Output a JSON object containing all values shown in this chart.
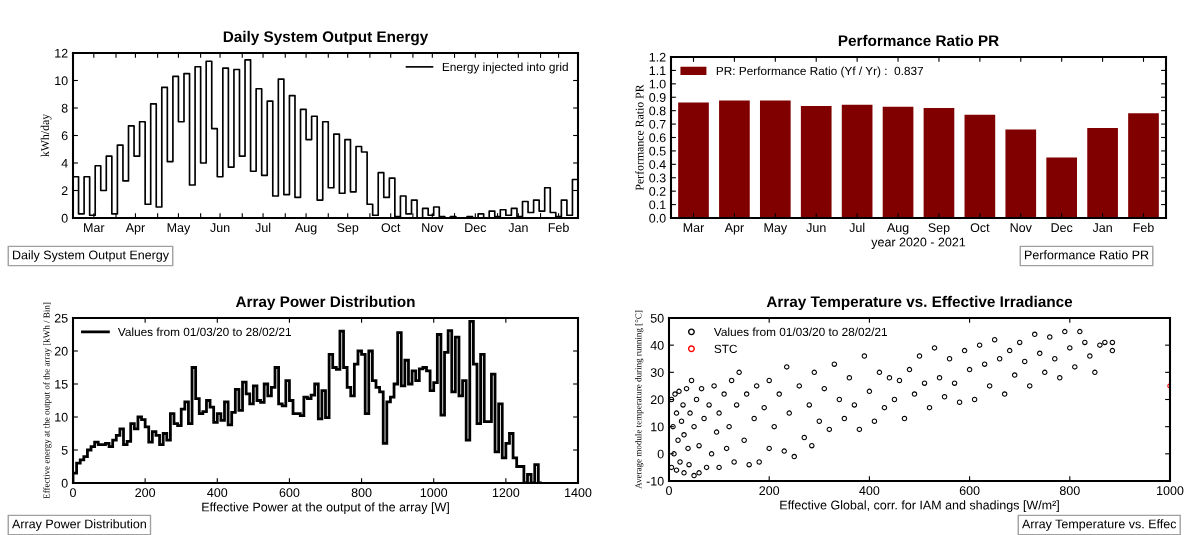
{
  "chart_data": [
    {
      "type": "step",
      "title": "Daily System Output Energy",
      "ylabel": "kWh/day",
      "legend": "top right",
      "xlim": [
        "2020-03-01",
        "2021-02-28"
      ],
      "ylim": [
        0,
        12
      ],
      "yticks": [
        0,
        2,
        4,
        6,
        8,
        10,
        12
      ],
      "xticks": [
        {
          "value": "2020-03-16",
          "label": "Mar"
        },
        {
          "value": "2020-04-01",
          "label": null
        },
        {
          "value": "2020-04-15",
          "label": "Apr"
        },
        {
          "value": "2020-05-01",
          "label": null
        },
        {
          "value": "2020-05-16",
          "label": "May"
        },
        {
          "value": "2020-06-01",
          "label": null
        },
        {
          "value": "2020-06-15",
          "label": "Jun"
        },
        {
          "value": "2020-07-01",
          "label": null
        },
        {
          "value": "2020-07-16",
          "label": "Jul"
        },
        {
          "value": "2020-08-01",
          "label": null
        },
        {
          "value": "2020-08-16",
          "label": "Aug"
        },
        {
          "value": "2020-09-01",
          "label": null
        },
        {
          "value": "2020-09-15",
          "label": "Sep"
        },
        {
          "value": "2020-10-01",
          "label": null
        },
        {
          "value": "2020-10-16",
          "label": "Oct"
        },
        {
          "value": "2020-11-01",
          "label": null
        },
        {
          "value": "2020-11-15",
          "label": "Nov"
        },
        {
          "value": "2020-12-01",
          "label": null
        },
        {
          "value": "2020-12-16",
          "label": "Dec"
        },
        {
          "value": "2021-01-01",
          "label": null
        },
        {
          "value": "2021-01-16",
          "label": "Jan"
        },
        {
          "value": "2021-02-01",
          "label": null
        },
        {
          "value": "2021-02-14",
          "label": "Feb"
        }
      ],
      "annotations": [
        "Daily System Output Energy"
      ],
      "series": [
        {
          "name": "Energy injected into grid",
          "color": "#000000",
          "x": [
            "2020-03-01",
            "2020-03-05",
            "2020-03-09",
            "2020-03-13",
            "2020-03-17",
            "2020-03-21",
            "2020-03-25",
            "2020-03-29",
            "2020-04-02",
            "2020-04-06",
            "2020-04-10",
            "2020-04-14",
            "2020-04-18",
            "2020-04-22",
            "2020-04-26",
            "2020-04-30",
            "2020-05-04",
            "2020-05-08",
            "2020-05-12",
            "2020-05-16",
            "2020-05-20",
            "2020-05-24",
            "2020-05-28",
            "2020-06-01",
            "2020-06-05",
            "2020-06-09",
            "2020-06-13",
            "2020-06-17",
            "2020-06-21",
            "2020-06-25",
            "2020-06-29",
            "2020-07-03",
            "2020-07-07",
            "2020-07-11",
            "2020-07-15",
            "2020-07-19",
            "2020-07-23",
            "2020-07-27",
            "2020-07-31",
            "2020-08-04",
            "2020-08-08",
            "2020-08-12",
            "2020-08-16",
            "2020-08-20",
            "2020-08-24",
            "2020-08-28",
            "2020-09-01",
            "2020-09-05",
            "2020-09-09",
            "2020-09-13",
            "2020-09-17",
            "2020-09-21",
            "2020-09-25",
            "2020-09-29",
            "2020-10-03",
            "2020-10-07",
            "2020-10-11",
            "2020-10-15",
            "2020-10-19",
            "2020-10-23",
            "2020-10-27",
            "2020-10-31",
            "2020-11-04",
            "2020-11-08",
            "2020-11-12",
            "2020-11-16",
            "2020-11-20",
            "2020-11-24",
            "2020-11-28",
            "2020-12-02",
            "2020-12-06",
            "2020-12-10",
            "2020-12-14",
            "2020-12-18",
            "2020-12-22",
            "2020-12-26",
            "2020-12-30",
            "2021-01-03",
            "2021-01-07",
            "2021-01-11",
            "2021-01-15",
            "2021-01-19",
            "2021-01-23",
            "2021-01-27",
            "2021-01-31",
            "2021-02-04",
            "2021-02-08",
            "2021-02-12",
            "2021-02-16",
            "2021-02-20",
            "2021-02-24",
            "2021-02-28"
          ],
          "values": [
            3.0,
            0.3,
            3.0,
            0.2,
            3.8,
            2.0,
            4.5,
            0.3,
            5.3,
            2.7,
            6.7,
            4.5,
            7.0,
            1.0,
            8.3,
            0.8,
            9.5,
            4.1,
            10.3,
            7.0,
            10.5,
            2.4,
            11.0,
            4.0,
            11.4,
            6.5,
            3.0,
            10.9,
            3.7,
            10.8,
            4.5,
            11.5,
            3.4,
            9.4,
            3.1,
            8.5,
            1.6,
            10.1,
            1.7,
            8.9,
            1.5,
            7.9,
            5.7,
            7.4,
            1.3,
            7.0,
            2.2,
            6.1,
            1.8,
            5.7,
            1.9,
            5.2,
            4.8,
            1.0,
            0.2,
            3.3,
            1.5,
            2.9,
            0.1,
            1.6,
            0.3,
            1.3,
            0.0,
            0.7,
            0.2,
            0.8,
            0.1,
            0.0,
            0.1,
            0.0,
            0.0,
            0.1,
            0.0,
            0.3,
            0.0,
            0.5,
            0.1,
            0.6,
            0.2,
            0.7,
            0.1,
            1.2,
            0.4,
            1.3,
            0.5,
            2.2,
            0.4,
            0.1,
            1.3,
            0.2,
            2.8,
            3.0
          ]
        }
      ]
    },
    {
      "type": "bar",
      "title": "Performance Ratio PR",
      "ylabel": "Performance Ratio PR",
      "xlabel": "year 2020 - 2021",
      "legend": "top left",
      "categories": [
        "Mar",
        "Apr",
        "May",
        "Jun",
        "Jul",
        "Aug",
        "Sep",
        "Oct",
        "Nov",
        "Dec",
        "Jan",
        "Feb"
      ],
      "ylim": [
        0,
        1.2
      ],
      "yticks": [
        {
          "value": 0,
          "label": "0.0"
        },
        0.1,
        0.2,
        0.3,
        0.4,
        0.5,
        0.6,
        0.7,
        0.8,
        0.9,
        {
          "value": 1,
          "label": "1.0"
        },
        1.1,
        1.2
      ],
      "annotations": [
        "Performance Ratio PR"
      ],
      "series": [
        {
          "name": "PR: Performance Ratio (Yf / Yr) :  0.837",
          "color": "#800000",
          "values": [
            0.86,
            0.875,
            0.875,
            0.835,
            0.845,
            0.83,
            0.82,
            0.77,
            0.66,
            0.45,
            0.67,
            0.78
          ]
        }
      ]
    },
    {
      "type": "histogram",
      "title": "Array Power Distribution",
      "ylabel": "Effective energy at the output of the array [kWh / Bin]",
      "xlabel": "Effective Power at the output of the array [W]",
      "legend": "top left",
      "xlim": [
        0,
        1400
      ],
      "xticks": [
        0,
        200,
        400,
        600,
        800,
        1000,
        1200,
        1400
      ],
      "ylim": [
        0,
        25
      ],
      "yticks": [
        0,
        5,
        10,
        15,
        20,
        25
      ],
      "annotations": [
        "Array Power Distribution"
      ],
      "bins": [
        0,
        10,
        20,
        30,
        40,
        50,
        60,
        70,
        80,
        90,
        100,
        110,
        120,
        130,
        140,
        150,
        160,
        170,
        180,
        190,
        200,
        210,
        220,
        230,
        240,
        250,
        260,
        270,
        280,
        290,
        300,
        310,
        320,
        330,
        340,
        350,
        360,
        370,
        380,
        390,
        400,
        410,
        420,
        430,
        440,
        450,
        460,
        470,
        480,
        490,
        500,
        510,
        520,
        530,
        540,
        550,
        560,
        570,
        580,
        590,
        600,
        610,
        620,
        630,
        640,
        650,
        660,
        670,
        680,
        690,
        700,
        710,
        720,
        730,
        740,
        750,
        760,
        770,
        780,
        790,
        800,
        810,
        820,
        830,
        840,
        850,
        860,
        870,
        880,
        890,
        900,
        910,
        920,
        930,
        940,
        950,
        960,
        970,
        980,
        990,
        1000,
        1010,
        1020,
        1030,
        1040,
        1050,
        1060,
        1070,
        1080,
        1090,
        1100,
        1110,
        1120,
        1130,
        1140,
        1150,
        1160,
        1170,
        1180,
        1190,
        1200,
        1210,
        1220,
        1230,
        1240,
        1250,
        1260,
        1270,
        1280,
        1290,
        1300
      ],
      "series": [
        {
          "name": "Values from 01/03/20 to 28/02/21",
          "color": "#000000",
          "values": [
            1.5,
            3,
            3.5,
            4,
            5,
            5.5,
            6.2,
            5.8,
            5.8,
            6,
            5.5,
            6.5,
            7.2,
            8.2,
            5.8,
            6.3,
            9,
            8.2,
            10,
            9.6,
            8.5,
            6.2,
            7.8,
            7.2,
            5.8,
            7.5,
            6.5,
            10.5,
            9,
            8.7,
            11.2,
            12.3,
            9,
            17.5,
            12.8,
            10.5,
            10.8,
            12.5,
            11.5,
            9.2,
            10.5,
            9.5,
            12.3,
            8.8,
            10.7,
            14.2,
            11,
            15.3,
            13.5,
            12,
            14.7,
            12.5,
            12.2,
            15,
            13.2,
            14.5,
            17.5,
            12,
            11.7,
            15.5,
            12.5,
            10.5,
            10.5,
            10.2,
            13,
            12.8,
            13.3,
            15,
            9.7,
            14,
            9.9,
            19.5,
            17.5,
            17.2,
            23,
            17.5,
            14.5,
            13.2,
            18,
            20,
            19.5,
            10.5,
            20,
            15.5,
            14.5,
            13.8,
            6,
            12.3,
            13,
            15,
            22.8,
            14.7,
            18.6,
            15,
            17,
            15.5,
            17.3,
            17.5,
            17,
            14,
            15.2,
            22.5,
            10.3,
            19.8,
            23.1,
            13.8,
            22.1,
            13.2,
            15.5,
            6.5,
            24.5,
            18,
            9,
            19.5,
            9.3,
            9.3,
            16.5,
            4.7,
            12,
            3.8,
            6,
            7.5,
            3.8,
            2.5,
            2.5,
            0,
            1.3,
            0,
            2.8,
            0
          ]
        }
      ]
    },
    {
      "type": "scatter",
      "title": "Array Temperature vs. Effective Irradiance",
      "ylabel": "Average module temperature during running [°C]",
      "xlabel": "Effective Global, corr. for IAM and shadings [W/m²]",
      "legend": "top left",
      "marker": "circle",
      "xlim": [
        0,
        1000
      ],
      "xticks": [
        0,
        200,
        400,
        600,
        800,
        1000
      ],
      "ylim": [
        -10,
        50
      ],
      "yticks": [
        -10,
        0,
        10,
        20,
        30,
        40,
        50
      ],
      "annotations": [
        "Array Temperature vs. Effec"
      ],
      "series": [
        {
          "name": "Values from 01/03/20 to 28/02/21",
          "color": "#000000",
          "x": [
            5,
            5,
            8,
            10,
            12,
            15,
            15,
            18,
            20,
            22,
            25,
            28,
            30,
            30,
            35,
            38,
            40,
            42,
            45,
            50,
            50,
            55,
            60,
            60,
            65,
            70,
            75,
            80,
            85,
            90,
            95,
            100,
            100,
            110,
            115,
            120,
            125,
            130,
            135,
            140,
            150,
            155,
            160,
            170,
            175,
            180,
            190,
            200,
            200,
            210,
            220,
            230,
            235,
            240,
            250,
            260,
            270,
            280,
            285,
            290,
            300,
            310,
            320,
            330,
            340,
            350,
            360,
            370,
            380,
            390,
            400,
            410,
            420,
            430,
            440,
            450,
            460,
            470,
            480,
            490,
            500,
            510,
            520,
            530,
            540,
            550,
            560,
            570,
            580,
            590,
            600,
            610,
            620,
            630,
            640,
            650,
            660,
            670,
            680,
            690,
            700,
            710,
            720,
            730,
            740,
            750,
            760,
            770,
            780,
            790,
            800,
            810,
            820,
            830,
            840,
            850,
            860,
            870,
            885,
            885
          ],
          "values": [
            -5,
            20,
            10,
            0,
            22,
            -6,
            15,
            5,
            23,
            -3,
            12,
            18,
            -7,
            7,
            24,
            2,
            -4,
            15,
            27,
            -8,
            10,
            20,
            -7,
            3,
            24,
            13,
            -5,
            18,
            0,
            25,
            8,
            -5,
            15,
            22,
            2,
            10,
            27,
            -3,
            18,
            30,
            5,
            22,
            -4,
            13,
            25,
            -3,
            17,
            27,
            2,
            10,
            22,
            1,
            32,
            15,
            -1,
            25,
            6,
            18,
            3,
            30,
            12,
            24,
            9,
            33,
            20,
            13,
            28,
            18,
            9,
            36,
            23,
            12,
            30,
            17,
            28,
            20,
            27,
            13,
            31,
            22,
            36,
            26,
            17,
            39,
            28,
            21,
            35,
            26,
            19,
            38,
            31,
            20,
            40,
            33,
            25,
            42,
            35,
            22,
            38,
            29,
            41,
            34,
            25,
            44,
            37,
            30,
            43,
            35,
            28,
            45,
            39,
            32,
            45,
            41,
            36,
            30,
            40,
            41,
            38,
            41
          ]
        },
        {
          "name": "STC",
          "color": "#ff0000",
          "x": [
            1000
          ],
          "values": [
            25
          ]
        }
      ]
    }
  ]
}
